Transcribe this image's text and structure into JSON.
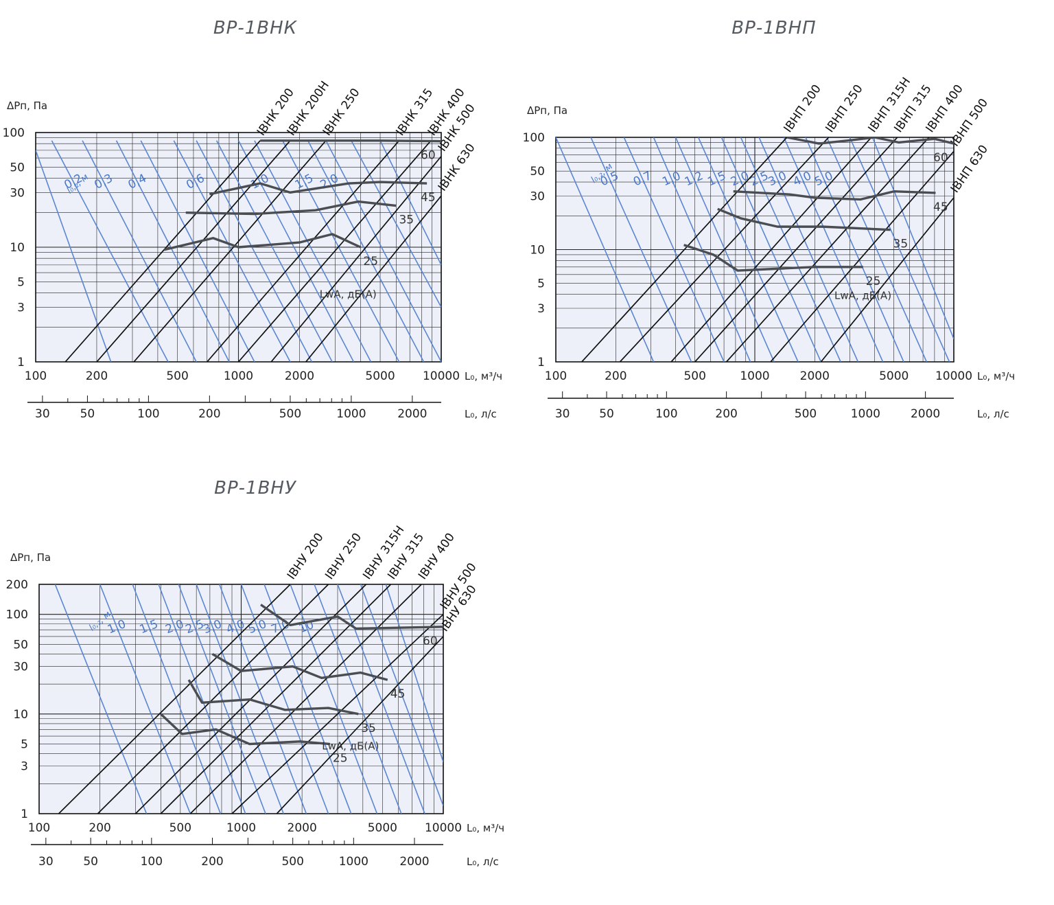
{
  "colors": {
    "plot_bg": "#edf0f8",
    "grid": "#222222",
    "model_line": "#111111",
    "throw_line": "#5b86d0",
    "noise_line": "#4a4d52",
    "title": "#555a60"
  },
  "chart_data": [
    {
      "type": "line",
      "title": "ВР-1ВНК",
      "xlabel": "L₀, м³/ч",
      "x2label": "L₀, л/с",
      "ylabel": "ΔPп, Па",
      "xscale": "log",
      "yscale": "log",
      "xlim": [
        100,
        10000
      ],
      "ylim": [
        1,
        100
      ],
      "x_ticks": [
        100,
        200,
        500,
        1000,
        2000,
        5000,
        10000
      ],
      "x_tick_labels": [
        "100",
        "200",
        "500",
        "1000",
        "2000",
        "5000",
        "10000"
      ],
      "x2_ticks": [
        30,
        50,
        100,
        200,
        500,
        1000,
        2000
      ],
      "x2_tick_labels": [
        "30",
        "50",
        "100",
        "200",
        "500",
        "1000",
        "2000"
      ],
      "y_ticks": [
        1,
        3,
        5,
        10,
        30,
        50,
        100
      ],
      "y_tick_labels": [
        "1",
        "3",
        "5",
        "10",
        "30",
        "50",
        "100"
      ],
      "grid": true,
      "model_lines": [
        {
          "name": "IВНК 200",
          "x0": 140,
          "y0": 1,
          "x1": 1280,
          "y1": 85
        },
        {
          "name": "IВНК 200Н",
          "x0": 200,
          "y0": 1,
          "x1": 1800,
          "y1": 85
        },
        {
          "name": "IВНК 250",
          "x0": 305,
          "y0": 1,
          "x1": 2700,
          "y1": 85
        },
        {
          "name": "IВНК 315",
          "x0": 700,
          "y0": 1,
          "x1": 6200,
          "y1": 85
        },
        {
          "name": "IВНК 400",
          "x0": 1000,
          "y0": 1,
          "x1": 8900,
          "y1": 85
        },
        {
          "name": "IВНК 500",
          "x0": 1450,
          "y0": 1,
          "x1": 10000,
          "y1": 62
        },
        {
          "name": "IВНК 630",
          "x0": 2150,
          "y0": 1,
          "x1": 10000,
          "y1": 28
        }
      ],
      "throw_label": "l₀,₂, м",
      "throw_lines": [
        {
          "label": "",
          "x0": 100,
          "y0": 70,
          "x1": 235,
          "y1": 1
        },
        {
          "label": "0,2",
          "x0": 120,
          "y0": 85,
          "x1": 450,
          "y1": 1
        },
        {
          "label": "0,3",
          "x0": 170,
          "y0": 85,
          "x1": 620,
          "y1": 1
        },
        {
          "label": "0,4",
          "x0": 250,
          "y0": 85,
          "x1": 900,
          "y1": 1
        },
        {
          "label": "",
          "x0": 330,
          "y0": 85,
          "x1": 1200,
          "y1": 1
        },
        {
          "label": "0,6",
          "x0": 480,
          "y0": 85,
          "x1": 1800,
          "y1": 1
        },
        {
          "label": "",
          "x0": 620,
          "y0": 85,
          "x1": 2300,
          "y1": 1
        },
        {
          "label": "",
          "x0": 780,
          "y0": 85,
          "x1": 2900,
          "y1": 1
        },
        {
          "label": "1,0",
          "x0": 1000,
          "y0": 85,
          "x1": 3700,
          "y1": 1
        },
        {
          "label": "",
          "x0": 1200,
          "y0": 85,
          "x1": 4500,
          "y1": 1
        },
        {
          "label": "1,5",
          "x0": 1650,
          "y0": 85,
          "x1": 6200,
          "y1": 1
        },
        {
          "label": "2,0",
          "x0": 2200,
          "y0": 85,
          "x1": 8200,
          "y1": 1
        },
        {
          "label": "",
          "x0": 2700,
          "y0": 85,
          "x1": 10000,
          "y1": 1
        },
        {
          "label": "",
          "x0": 3600,
          "y0": 85,
          "x1": 10000,
          "y1": 3
        },
        {
          "label": "",
          "x0": 5000,
          "y0": 85,
          "x1": 10000,
          "y1": 7
        }
      ],
      "noise_label": "LwA, дБ(А)",
      "noise_curves": [
        {
          "label": "60",
          "points": [
            [
              1280,
              85
            ],
            [
              2000,
              85
            ],
            [
              5000,
              85
            ],
            [
              10000,
              84
            ]
          ]
        },
        {
          "label": "45",
          "points": [
            [
              720,
              29
            ],
            [
              1280,
              36
            ],
            [
              1800,
              30
            ],
            [
              3500,
              36
            ],
            [
              5000,
              37
            ],
            [
              8500,
              36
            ]
          ]
        },
        {
          "label": "35",
          "points": [
            [
              550,
              20
            ],
            [
              1200,
              19.5
            ],
            [
              2400,
              21
            ],
            [
              3900,
              25
            ],
            [
              6000,
              23
            ]
          ]
        },
        {
          "label": "25",
          "points": [
            [
              430,
              9.5
            ],
            [
              750,
              12
            ],
            [
              1000,
              10
            ],
            [
              2000,
              11
            ],
            [
              2900,
              13
            ],
            [
              4000,
              10
            ]
          ]
        }
      ]
    },
    {
      "type": "line",
      "title": "ВР-1ВНП",
      "xlabel": "L₀, м³/ч",
      "x2label": "L₀, л/с",
      "ylabel": "ΔPп, Па",
      "xscale": "log",
      "yscale": "log",
      "xlim": [
        100,
        10000
      ],
      "ylim": [
        1,
        100
      ],
      "x_ticks": [
        100,
        200,
        500,
        1000,
        2000,
        5000,
        10000
      ],
      "x_tick_labels": [
        "100",
        "200",
        "500",
        "1000",
        "2000",
        "5000",
        "10000"
      ],
      "x2_ticks": [
        30,
        50,
        100,
        200,
        500,
        1000,
        2000
      ],
      "x2_tick_labels": [
        "30",
        "50",
        "100",
        "200",
        "500",
        "1000",
        "2000"
      ],
      "y_ticks": [
        1,
        3,
        5,
        10,
        30,
        50,
        100
      ],
      "y_tick_labels": [
        "1",
        "3",
        "5",
        "10",
        "30",
        "50",
        "100"
      ],
      "grid": true,
      "model_lines": [
        {
          "name": "IВНП 200",
          "x0": 135,
          "y0": 1,
          "x1": 1450,
          "y1": 100
        },
        {
          "name": "IВНП 250",
          "x0": 210,
          "y0": 1,
          "x1": 2350,
          "y1": 100
        },
        {
          "name": "IВНП 315Н",
          "x0": 380,
          "y0": 1,
          "x1": 3850,
          "y1": 100
        },
        {
          "name": "IВНП 315",
          "x0": 500,
          "y0": 1,
          "x1": 5200,
          "y1": 100
        },
        {
          "name": "IВНП 400",
          "x0": 720,
          "y0": 1,
          "x1": 7500,
          "y1": 100
        },
        {
          "name": "IВНП 500",
          "x0": 1200,
          "y0": 1,
          "x1": 10000,
          "y1": 75
        },
        {
          "name": "IВНП 630",
          "x0": 2150,
          "y0": 1,
          "x1": 10000,
          "y1": 29
        }
      ],
      "throw_label": "l₀,₂, м",
      "throw_lines": [
        {
          "label": "",
          "x0": 100,
          "y0": 100,
          "x1": 310,
          "y1": 1
        },
        {
          "label": "0,5",
          "x0": 150,
          "y0": 100,
          "x1": 480,
          "y1": 1
        },
        {
          "label": "0,7",
          "x0": 220,
          "y0": 100,
          "x1": 700,
          "y1": 1
        },
        {
          "label": "1,0",
          "x0": 310,
          "y0": 100,
          "x1": 950,
          "y1": 1
        },
        {
          "label": "1,2",
          "x0": 400,
          "y0": 100,
          "x1": 1250,
          "y1": 1
        },
        {
          "label": "1,5",
          "x0": 520,
          "y0": 100,
          "x1": 1650,
          "y1": 1
        },
        {
          "label": "2,0",
          "x0": 680,
          "y0": 100,
          "x1": 2150,
          "y1": 1
        },
        {
          "label": "2,5",
          "x0": 850,
          "y0": 100,
          "x1": 2700,
          "y1": 1
        },
        {
          "label": "3,0",
          "x0": 1050,
          "y0": 100,
          "x1": 3300,
          "y1": 1
        },
        {
          "label": "4,0",
          "x0": 1400,
          "y0": 100,
          "x1": 4400,
          "y1": 1
        },
        {
          "label": "5,0",
          "x0": 1800,
          "y0": 100,
          "x1": 5600,
          "y1": 1
        },
        {
          "label": "",
          "x0": 2300,
          "y0": 100,
          "x1": 7300,
          "y1": 1
        },
        {
          "label": "",
          "x0": 3000,
          "y0": 100,
          "x1": 9500,
          "y1": 1
        },
        {
          "label": "",
          "x0": 3900,
          "y0": 100,
          "x1": 10000,
          "y1": 1.6
        }
      ],
      "noise_label": "LwA, дБ(А)",
      "noise_curves": [
        {
          "label": "60",
          "points": [
            [
              1450,
              100
            ],
            [
              2100,
              88
            ],
            [
              3000,
              94
            ],
            [
              4000,
              100
            ],
            [
              5300,
              90
            ],
            [
              8000,
              97
            ],
            [
              10000,
              88
            ]
          ]
        },
        {
          "label": "45",
          "points": [
            [
              780,
              33
            ],
            [
              1500,
              31
            ],
            [
              2000,
              29
            ],
            [
              3400,
              28
            ],
            [
              5000,
              33
            ],
            [
              8100,
              32
            ]
          ]
        },
        {
          "label": "35",
          "points": [
            [
              650,
              23
            ],
            [
              850,
              19
            ],
            [
              1300,
              16
            ],
            [
              2200,
              16
            ],
            [
              4800,
              15
            ]
          ]
        },
        {
          "label": "25",
          "points": [
            [
              440,
              11
            ],
            [
              620,
              9
            ],
            [
              820,
              6.5
            ],
            [
              1400,
              6.8
            ],
            [
              2000,
              7
            ],
            [
              3500,
              7
            ]
          ]
        }
      ]
    },
    {
      "type": "line",
      "title": "ВР-1ВНУ",
      "xlabel": "L₀, м³/ч",
      "x2label": "L₀, л/с",
      "ylabel": "ΔPп, Па",
      "xscale": "log",
      "yscale": "log",
      "xlim": [
        100,
        10000
      ],
      "ylim": [
        1,
        200
      ],
      "x_ticks": [
        100,
        200,
        500,
        1000,
        2000,
        5000,
        10000
      ],
      "x_tick_labels": [
        "100",
        "200",
        "500",
        "1000",
        "2000",
        "5000",
        "10000"
      ],
      "x2_ticks": [
        30,
        50,
        100,
        200,
        500,
        1000,
        2000
      ],
      "x2_tick_labels": [
        "30",
        "50",
        "100",
        "200",
        "500",
        "1000",
        "2000"
      ],
      "y_ticks": [
        1,
        3,
        5,
        10,
        30,
        50,
        100,
        200
      ],
      "y_tick_labels": [
        "1",
        "3",
        "5",
        "10",
        "30",
        "50",
        "100",
        "200"
      ],
      "grid": true,
      "model_lines": [
        {
          "name": "IВНУ 200",
          "x0": 125,
          "y0": 1,
          "x1": 1750,
          "y1": 200
        },
        {
          "name": "IВНУ 250",
          "x0": 195,
          "y0": 1,
          "x1": 2700,
          "y1": 200
        },
        {
          "name": "IВНУ 315Н",
          "x0": 300,
          "y0": 1,
          "x1": 4150,
          "y1": 200
        },
        {
          "name": "IВНУ 315",
          "x0": 400,
          "y0": 1,
          "x1": 5500,
          "y1": 200
        },
        {
          "name": "IВНУ 400",
          "x0": 560,
          "y0": 1,
          "x1": 7800,
          "y1": 200
        },
        {
          "name": "IВНУ 500",
          "x0": 900,
          "y0": 1,
          "x1": 10000,
          "y1": 100
        },
        {
          "name": "IВНУ 630",
          "x0": 1500,
          "y0": 1,
          "x1": 10000,
          "y1": 60
        }
      ],
      "throw_label": "l₀,₂, м",
      "throw_lines": [
        {
          "label": "",
          "x0": 120,
          "y0": 200,
          "x1": 340,
          "y1": 1
        },
        {
          "label": "1,0",
          "x0": 200,
          "y0": 200,
          "x1": 560,
          "y1": 1
        },
        {
          "label": "1,5",
          "x0": 290,
          "y0": 200,
          "x1": 790,
          "y1": 1
        },
        {
          "label": "2,0",
          "x0": 390,
          "y0": 200,
          "x1": 1050,
          "y1": 1
        },
        {
          "label": "2,5",
          "x0": 490,
          "y0": 200,
          "x1": 1320,
          "y1": 1
        },
        {
          "label": "3,0",
          "x0": 600,
          "y0": 200,
          "x1": 1620,
          "y1": 1
        },
        {
          "label": "4,0",
          "x0": 780,
          "y0": 200,
          "x1": 2100,
          "y1": 1
        },
        {
          "label": "5,0",
          "x0": 1000,
          "y0": 200,
          "x1": 2700,
          "y1": 1
        },
        {
          "label": "7,0",
          "x0": 1300,
          "y0": 200,
          "x1": 3500,
          "y1": 1
        },
        {
          "label": "10",
          "x0": 1750,
          "y0": 200,
          "x1": 4700,
          "y1": 1
        },
        {
          "label": "",
          "x0": 2300,
          "y0": 200,
          "x1": 6200,
          "y1": 1
        },
        {
          "label": "",
          "x0": 3000,
          "y0": 200,
          "x1": 8100,
          "y1": 1
        },
        {
          "label": "",
          "x0": 3900,
          "y0": 200,
          "x1": 10000,
          "y1": 1.2
        },
        {
          "label": "",
          "x0": 5200,
          "y0": 200,
          "x1": 10000,
          "y1": 3.3
        }
      ],
      "noise_label": "LwA, дБ(А)",
      "noise_curves": [
        {
          "label": "60",
          "points": [
            [
              1250,
              125
            ],
            [
              1750,
              78
            ],
            [
              3000,
              95
            ],
            [
              3700,
              72
            ],
            [
              10000,
              75
            ]
          ]
        },
        {
          "label": "45",
          "points": [
            [
              720,
              40
            ],
            [
              1000,
              27
            ],
            [
              1800,
              30
            ],
            [
              2500,
              23
            ],
            [
              3900,
              26
            ],
            [
              5300,
              22
            ]
          ]
        },
        {
          "label": "35",
          "points": [
            [
              550,
              22
            ],
            [
              640,
              13
            ],
            [
              1100,
              14
            ],
            [
              1650,
              11
            ],
            [
              2700,
              11.5
            ],
            [
              3800,
              10
            ]
          ]
        },
        {
          "label": "25",
          "points": [
            [
              400,
              10
            ],
            [
              510,
              6.3
            ],
            [
              750,
              7
            ],
            [
              1100,
              5
            ],
            [
              1950,
              5.3
            ],
            [
              2750,
              5
            ]
          ]
        }
      ]
    }
  ]
}
